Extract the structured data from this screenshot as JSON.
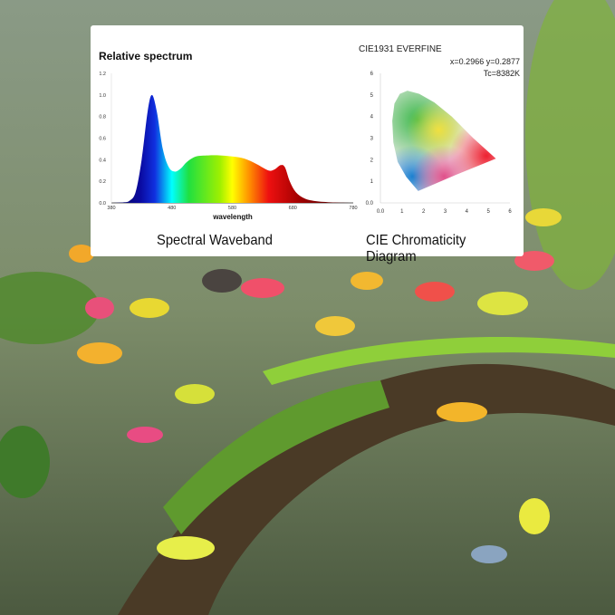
{
  "captions": {
    "left": "Spectral Waveband",
    "right": "CIE Chromaticity Diagram"
  },
  "chart_data": [
    {
      "type": "area",
      "title": "Relative spectrum",
      "xlabel": "wavelength",
      "ylabel": "",
      "xlim": [
        380,
        780
      ],
      "ylim": [
        0,
        1.2
      ],
      "xticks": [
        "380",
        "480",
        "580",
        "680",
        "780"
      ],
      "yticks": [
        "0.0",
        "0.2",
        "0.4",
        "0.6",
        "0.8",
        "1.0",
        "1.2"
      ],
      "x": [
        380,
        400,
        410,
        420,
        430,
        440,
        447,
        455,
        465,
        475,
        485,
        495,
        505,
        520,
        540,
        560,
        580,
        600,
        620,
        640,
        650,
        660,
        667,
        675,
        685,
        700,
        720,
        750,
        780
      ],
      "y": [
        0,
        0.005,
        0.02,
        0.1,
        0.4,
        0.85,
        1.0,
        0.85,
        0.5,
        0.33,
        0.29,
        0.32,
        0.38,
        0.43,
        0.44,
        0.44,
        0.43,
        0.41,
        0.36,
        0.3,
        0.31,
        0.35,
        0.33,
        0.2,
        0.1,
        0.04,
        0.015,
        0.004,
        0
      ],
      "fill": "visible spectrum gradient"
    },
    {
      "type": "scatter",
      "title": "CIE1931 EVERFINE",
      "annotations": [
        "x=0.2966 y=0.2877",
        "Tc=8382K"
      ],
      "xlim": [
        0,
        6
      ],
      "ylim": [
        0,
        6
      ],
      "xticks": [
        "0.0",
        "1",
        "2",
        "3",
        "4",
        "5",
        "6"
      ],
      "yticks": [
        "0.0",
        "1",
        "2",
        "3",
        "4",
        "5",
        "6"
      ],
      "gamut_outline": [
        [
          1.75,
          0.55
        ],
        [
          1.2,
          1.2
        ],
        [
          0.8,
          1.9
        ],
        [
          0.6,
          2.8
        ],
        [
          0.55,
          3.8
        ],
        [
          0.65,
          4.6
        ],
        [
          0.9,
          5.05
        ],
        [
          1.25,
          5.2
        ],
        [
          1.8,
          5.05
        ],
        [
          2.5,
          4.65
        ],
        [
          3.3,
          4.0
        ],
        [
          4.3,
          3.0
        ],
        [
          5.35,
          2.05
        ],
        [
          3.5,
          1.3
        ],
        [
          1.75,
          0.55
        ]
      ]
    }
  ]
}
